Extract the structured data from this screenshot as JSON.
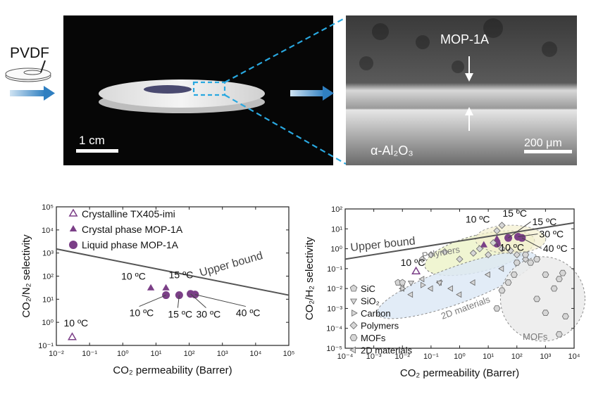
{
  "photo_left": {
    "membrane_label": "PVDF",
    "scale_bar": "1 cm"
  },
  "photo_right": {
    "film_label": "MOP-1A",
    "substrate_label": "α-Al₂O₃",
    "scale_bar": "200 μm"
  },
  "colors": {
    "purple": "#7B3F87",
    "line": "#555555",
    "arrow_blue": "#3a86c8",
    "dash_blue": "#29a8e0"
  },
  "chart_data": [
    {
      "type": "scatter",
      "xlabel": "CO₂ permeability (Barrer)",
      "ylabel": "CO₂/N₂ selectivity",
      "x_scale": "log",
      "y_scale": "log",
      "xlim": [
        0.01,
        100000
      ],
      "ylim": [
        0.1,
        100000
      ],
      "x_ticks": [
        "10⁻²",
        "10⁻¹",
        "10⁰",
        "10¹",
        "10²",
        "10³",
        "10⁴",
        "10⁵"
      ],
      "y_ticks": [
        "10⁻¹",
        "10⁰",
        "10¹",
        "10²",
        "10³",
        "10⁴",
        "10⁵"
      ],
      "legend": [
        "Crystalline TX405-imi",
        "Crystal phase MOP-1A",
        "Liquid phase MOP-1A"
      ],
      "upper_bound_label": "Upper bound",
      "upper_bound": [
        [
          0.01,
          1500
        ],
        [
          100000,
          15
        ]
      ],
      "series": [
        {
          "name": "Crystalline TX405-imi",
          "marker": "triangle-open",
          "points": [
            {
              "x": 0.03,
              "y": 0.22,
              "label": "10 ºC"
            }
          ]
        },
        {
          "name": "Crystal phase MOP-1A",
          "marker": "triangle",
          "points": [
            {
              "x": 7,
              "y": 30,
              "label": "10 ºC"
            },
            {
              "x": 20,
              "y": 30,
              "label": "15 ºC"
            }
          ]
        },
        {
          "name": "Liquid phase MOP-1A",
          "marker": "circle",
          "points": [
            {
              "x": 20,
              "y": 15,
              "label": "10 ºC"
            },
            {
              "x": 50,
              "y": 15,
              "label": "15 ºC"
            },
            {
              "x": 110,
              "y": 17,
              "label": "30 ºC"
            },
            {
              "x": 150,
              "y": 16,
              "label": "40 ºC"
            }
          ]
        }
      ]
    },
    {
      "type": "scatter",
      "xlabel": "CO₂ permeability (Barrer)",
      "ylabel": "CO₂/H₂ selectivity",
      "x_scale": "log",
      "y_scale": "log",
      "xlim": [
        0.0001,
        10000
      ],
      "ylim": [
        1e-05,
        100
      ],
      "x_ticks": [
        "10⁻⁴",
        "10⁻³",
        "10⁻²",
        "10⁻¹",
        "10⁰",
        "10¹",
        "10²",
        "10³",
        "10⁴"
      ],
      "y_ticks": [
        "10⁻⁵",
        "10⁻⁴",
        "10⁻³",
        "10⁻²",
        "10⁻¹",
        "10⁰",
        "10¹",
        "10²"
      ],
      "legend": [
        "SiC",
        "SiO₂",
        "Carbon",
        "Polymers",
        "MOFs",
        "2D materials"
      ],
      "upper_bound_label": "Upper bound",
      "upper_bound": [
        [
          0.0001,
          0.3
        ],
        [
          10000,
          20
        ]
      ],
      "region_labels": [
        "Polymers",
        "2D materials",
        "MOFs"
      ],
      "series": [
        {
          "name": "Crystalline TX405-imi",
          "marker": "triangle-open",
          "points": [
            {
              "x": 0.03,
              "y": 0.07,
              "label": "10 ºC"
            }
          ]
        },
        {
          "name": "Crystal phase MOP-1A",
          "marker": "triangle",
          "points": [
            {
              "x": 7,
              "y": 1.5,
              "label": "10 ºC"
            },
            {
              "x": 20,
              "y": 3,
              "label": "15 ºC"
            }
          ]
        },
        {
          "name": "Liquid phase MOP-1A",
          "marker": "circle",
          "points": [
            {
              "x": 20,
              "y": 1.8,
              "label": "10 ºC"
            },
            {
              "x": 50,
              "y": 3.5,
              "label": "15 ºC"
            },
            {
              "x": 110,
              "y": 4,
              "label": "30 ºC"
            },
            {
              "x": 150,
              "y": 3.5,
              "label": "40 ºC"
            }
          ]
        },
        {
          "name": "Polymers",
          "marker": "diamond",
          "points": [
            {
              "x": 0.1,
              "y": 0.5
            },
            {
              "x": 0.3,
              "y": 0.7
            },
            {
              "x": 1,
              "y": 0.3
            },
            {
              "x": 3,
              "y": 0.6
            },
            {
              "x": 5,
              "y": 1
            },
            {
              "x": 10,
              "y": 0.5
            },
            {
              "x": 15,
              "y": 2
            },
            {
              "x": 30,
              "y": 1
            },
            {
              "x": 60,
              "y": 0.8
            },
            {
              "x": 100,
              "y": 0.5
            },
            {
              "x": 200,
              "y": 0.3
            },
            {
              "x": 20,
              "y": 8
            },
            {
              "x": 30,
              "y": 15
            },
            {
              "x": 0.05,
              "y": 0.3
            }
          ]
        },
        {
          "name": "2D materials",
          "marker": "triangle-left",
          "points": [
            {
              "x": 0.01,
              "y": 0.01
            },
            {
              "x": 0.05,
              "y": 0.03
            },
            {
              "x": 0.1,
              "y": 0.01
            },
            {
              "x": 0.2,
              "y": 0.02
            },
            {
              "x": 0.5,
              "y": 0.01
            },
            {
              "x": 1,
              "y": 0.005
            },
            {
              "x": 3,
              "y": 0.02
            },
            {
              "x": 10,
              "y": 0.05
            },
            {
              "x": 30,
              "y": 0.1
            },
            {
              "x": 0.02,
              "y": 0.005
            }
          ]
        },
        {
          "name": "SiC",
          "marker": "pentagon",
          "points": [
            {
              "x": 0.007,
              "y": 0.02
            },
            {
              "x": 0.01,
              "y": 0.02
            }
          ]
        },
        {
          "name": "SiO₂",
          "marker": "triangle-down",
          "points": [
            {
              "x": 0.2,
              "y": 0.02
            },
            {
              "x": 0.02,
              "y": 0.02
            }
          ]
        },
        {
          "name": "Carbon",
          "marker": "triangle-right",
          "points": [
            {
              "x": 0.01,
              "y": 0.01
            },
            {
              "x": 0.05,
              "y": 0.015
            }
          ]
        },
        {
          "name": "MOFs",
          "marker": "hexagon",
          "points": [
            {
              "x": 200,
              "y": 0.5
            },
            {
              "x": 300,
              "y": 0.2
            },
            {
              "x": 500,
              "y": 0.3
            },
            {
              "x": 1000,
              "y": 0.05
            },
            {
              "x": 2000,
              "y": 0.01
            },
            {
              "x": 3000,
              "y": 0.03
            },
            {
              "x": 4000,
              "y": 0.06
            },
            {
              "x": 500,
              "y": 0.003
            },
            {
              "x": 1000,
              "y": 0.0006
            },
            {
              "x": 80,
              "y": 0.05
            },
            {
              "x": 100,
              "y": 0.2
            },
            {
              "x": 30,
              "y": 0.008
            },
            {
              "x": 50,
              "y": 0.02
            },
            {
              "x": 20,
              "y": 0.001
            },
            {
              "x": 5000,
              "y": 0.0004
            },
            {
              "x": 3000,
              "y": 5e-05
            }
          ]
        }
      ]
    }
  ]
}
